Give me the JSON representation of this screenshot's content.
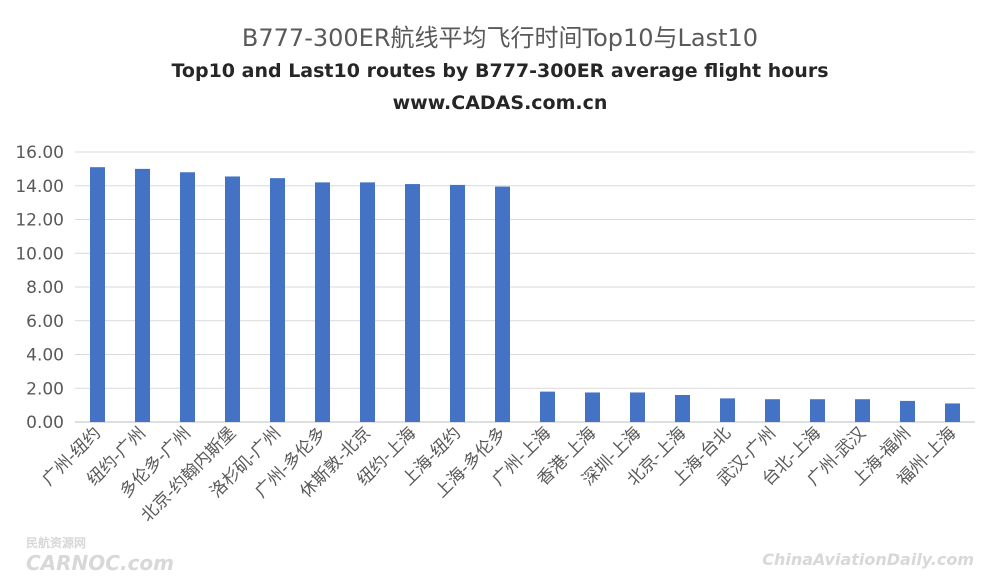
{
  "title_cn": "B777-300ER航线平均飞行时间Top10与Last10",
  "title_en": "Top10 and Last10 routes by B777-300ER average flight hours",
  "website": "www.CADAS.com.cn",
  "watermark_left": "CARNOC.com",
  "watermark_left_cn": "民航资源网",
  "watermark_right": "ChinaAviationDaily.com",
  "colors": {
    "bar": "#4472C4",
    "grid": "#d9d9d9",
    "text": "#595959"
  },
  "chart_data": {
    "type": "bar",
    "title": "B777-300ER航线平均飞行时间Top10与Last10",
    "subtitle": "Top10 and Last10 routes by B777-300ER average flight hours",
    "categories": [
      "广州-纽约",
      "纽约-广州",
      "多伦多-广州",
      "北京-约翰内斯堡",
      "洛杉矶-广州",
      "广州-多伦多",
      "休斯敦-北京",
      "纽约-上海",
      "上海-纽约",
      "上海-多伦多",
      "广州-上海",
      "香港-上海",
      "深圳-上海",
      "北京-上海",
      "上海-台北",
      "武汉-广州",
      "台北-上海",
      "广州-武汉",
      "上海-福州",
      "福州-上海"
    ],
    "values": [
      15.1,
      15.0,
      14.8,
      14.55,
      14.45,
      14.2,
      14.2,
      14.1,
      14.05,
      13.95,
      1.8,
      1.75,
      1.75,
      1.6,
      1.4,
      1.35,
      1.35,
      1.35,
      1.25,
      1.1
    ],
    "yticks": [
      "16.00",
      "14.00",
      "12.00",
      "10.00",
      "8.00",
      "6.00",
      "4.00",
      "2.00",
      "0.00"
    ],
    "ylim": [
      0,
      16
    ],
    "grid": true,
    "legend": "none",
    "xlabel": "",
    "ylabel": ""
  }
}
